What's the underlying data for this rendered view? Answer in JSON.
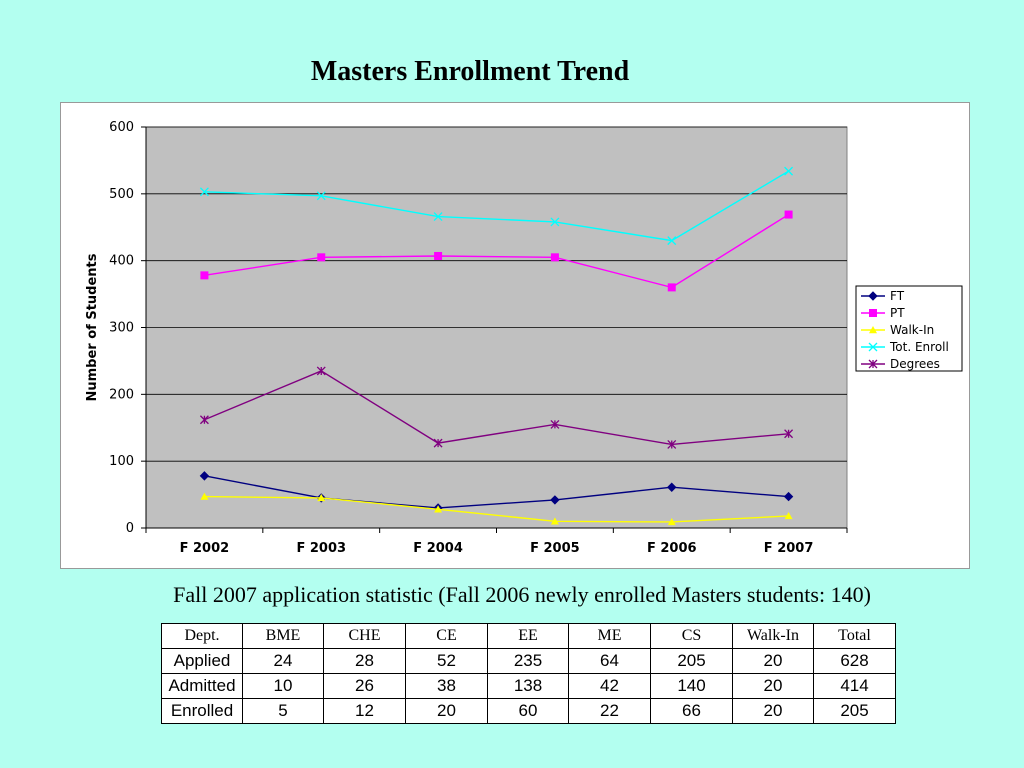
{
  "slide": {
    "title": "Masters Enrollment Trend",
    "caption": "Fall 2007 application statistic  (Fall 2006 newly enrolled Masters students: 140)"
  },
  "chart_data": {
    "type": "line",
    "title": "",
    "xlabel": "",
    "ylabel": "Number of Students",
    "ylim": [
      0,
      600
    ],
    "yticks": [
      "0",
      "100",
      "200",
      "300",
      "400",
      "500",
      "600"
    ],
    "grid": true,
    "legend_position": "right",
    "categories": [
      "F 2002",
      "F 2003",
      "F 2004",
      "F 2005",
      "F 2006",
      "F 2007"
    ],
    "series": [
      {
        "name": "FT",
        "color": "#000080",
        "marker": "diamond",
        "values": [
          78,
          45,
          30,
          42,
          61,
          47
        ]
      },
      {
        "name": "PT",
        "color": "#ff00ff",
        "marker": "square",
        "values": [
          378,
          405,
          407,
          405,
          360,
          469
        ]
      },
      {
        "name": "Walk-In",
        "color": "#ffff00",
        "marker": "triangle",
        "values": [
          47,
          45,
          28,
          10,
          9,
          18
        ]
      },
      {
        "name": "Tot. Enroll",
        "color": "#00ffff",
        "marker": "x",
        "values": [
          503,
          497,
          466,
          458,
          430,
          534
        ]
      },
      {
        "name": "Degrees",
        "color": "#800080",
        "marker": "asterisk",
        "values": [
          162,
          235,
          127,
          155,
          125,
          141
        ]
      }
    ]
  },
  "table": {
    "headers": [
      "Dept.",
      "BME",
      "CHE",
      "CE",
      "EE",
      "ME",
      "CS",
      "Walk-In",
      "Total"
    ],
    "rows": [
      [
        "Applied",
        "24",
        "28",
        "52",
        "235",
        "64",
        "205",
        "20",
        "628"
      ],
      [
        "Admitted",
        "10",
        "26",
        "38",
        "138",
        "42",
        "140",
        "20",
        "414"
      ],
      [
        "Enrolled",
        "5",
        "12",
        "20",
        "60",
        "22",
        "66",
        "20",
        "205"
      ]
    ]
  }
}
